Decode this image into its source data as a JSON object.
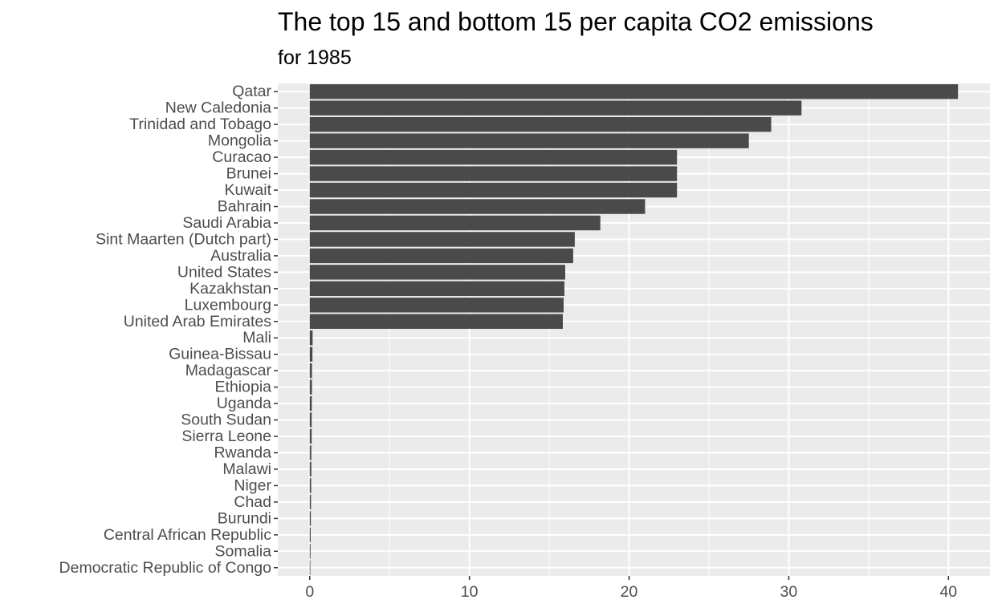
{
  "chart_data": {
    "type": "bar",
    "orientation": "horizontal",
    "title": "The top 15 and bottom 15 per capita CO2 emissions",
    "subtitle": "for 1985",
    "xlabel": "",
    "ylabel": "",
    "xlim": [
      -2,
      42.6
    ],
    "x_ticks": [
      0,
      10,
      20,
      30,
      40
    ],
    "x_minor_ticks": [
      5,
      15,
      25,
      35
    ],
    "grid": true,
    "legend": "none",
    "bar_color": "#4a4a4a",
    "panel_color": "#ebebeb",
    "grid_color": "#ffffff",
    "categories": [
      "Qatar",
      "New Caledonia",
      "Trinidad and Tobago",
      "Mongolia",
      "Curacao",
      "Brunei",
      "Kuwait",
      "Bahrain",
      "Saudi Arabia",
      "Sint Maarten (Dutch part)",
      "Australia",
      "United States",
      "Kazakhstan",
      "Luxembourg",
      "United Arab Emirates",
      "Mali",
      "Guinea-Bissau",
      "Madagascar",
      "Ethiopia",
      "Uganda",
      "South Sudan",
      "Sierra Leone",
      "Rwanda",
      "Malawi",
      "Niger",
      "Chad",
      "Burundi",
      "Central African Republic",
      "Somalia",
      "Democratic Republic of Congo"
    ],
    "values": [
      40.6,
      30.8,
      28.9,
      27.5,
      23.0,
      23.0,
      23.0,
      21.0,
      18.2,
      16.6,
      16.5,
      16.0,
      15.95,
      15.9,
      15.85,
      0.18,
      0.17,
      0.14,
      0.14,
      0.13,
      0.12,
      0.12,
      0.1,
      0.1,
      0.09,
      0.08,
      0.07,
      0.06,
      0.05,
      0.04
    ]
  }
}
